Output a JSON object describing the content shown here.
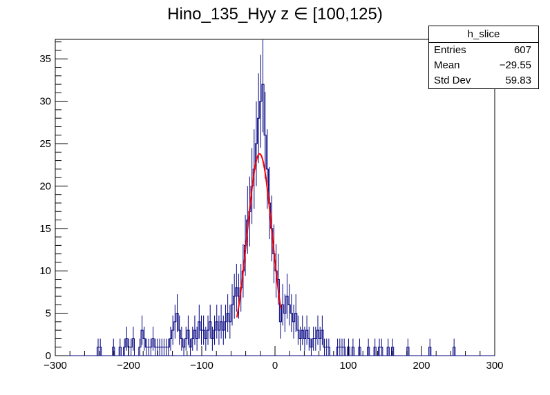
{
  "chart_data": {
    "type": "histogram",
    "title": "Hino_135_Hyy z  ∈ [100,125)",
    "xlim": [
      -300,
      300
    ],
    "ylim": [
      0,
      37.3
    ],
    "x_ticks": [
      -300,
      -200,
      -100,
      0,
      100,
      200,
      300
    ],
    "y_ticks": [
      0,
      5,
      10,
      15,
      20,
      25,
      30,
      35
    ],
    "bin_width": 3,
    "stats": {
      "name": "h_slice",
      "rows": [
        {
          "label": "Entries",
          "value": "607"
        },
        {
          "label": "Mean",
          "value": "−29.55"
        },
        {
          "label": "Std Dev",
          "value": "59.83"
        }
      ]
    },
    "colors": {
      "histogram": "#000080",
      "fit": "#ff0000"
    },
    "counts": [
      {
        "x": -243,
        "y": 1
      },
      {
        "x": -240,
        "y": 1
      },
      {
        "x": -222,
        "y": 1
      },
      {
        "x": -213,
        "y": 1
      },
      {
        "x": -207,
        "y": 1
      },
      {
        "x": -204,
        "y": 2
      },
      {
        "x": -201,
        "y": 1
      },
      {
        "x": -198,
        "y": 1
      },
      {
        "x": -195,
        "y": 2
      },
      {
        "x": -186,
        "y": 1
      },
      {
        "x": -183,
        "y": 3
      },
      {
        "x": -180,
        "y": 2
      },
      {
        "x": -177,
        "y": 1
      },
      {
        "x": -174,
        "y": 1
      },
      {
        "x": -171,
        "y": 1
      },
      {
        "x": -168,
        "y": 2
      },
      {
        "x": -165,
        "y": 1
      },
      {
        "x": -162,
        "y": 1
      },
      {
        "x": -159,
        "y": 1
      },
      {
        "x": -156,
        "y": 1
      },
      {
        "x": -153,
        "y": 1
      },
      {
        "x": -150,
        "y": 1
      },
      {
        "x": -147,
        "y": 1
      },
      {
        "x": -144,
        "y": 2
      },
      {
        "x": -141,
        "y": 3
      },
      {
        "x": -138,
        "y": 4
      },
      {
        "x": -135,
        "y": 5
      },
      {
        "x": -132,
        "y": 3
      },
      {
        "x": -129,
        "y": 2
      },
      {
        "x": -126,
        "y": 1
      },
      {
        "x": -123,
        "y": 2
      },
      {
        "x": -120,
        "y": 3
      },
      {
        "x": -117,
        "y": 1
      },
      {
        "x": -114,
        "y": 2
      },
      {
        "x": -111,
        "y": 3
      },
      {
        "x": -108,
        "y": 2
      },
      {
        "x": -105,
        "y": 4
      },
      {
        "x": -102,
        "y": 3
      },
      {
        "x": -99,
        "y": 3
      },
      {
        "x": -96,
        "y": 2
      },
      {
        "x": -93,
        "y": 3
      },
      {
        "x": -90,
        "y": 4
      },
      {
        "x": -87,
        "y": 2
      },
      {
        "x": -84,
        "y": 3
      },
      {
        "x": -81,
        "y": 4
      },
      {
        "x": -78,
        "y": 3
      },
      {
        "x": -75,
        "y": 4
      },
      {
        "x": -72,
        "y": 3
      },
      {
        "x": -69,
        "y": 4
      },
      {
        "x": -66,
        "y": 5
      },
      {
        "x": -63,
        "y": 4
      },
      {
        "x": -60,
        "y": 6
      },
      {
        "x": -57,
        "y": 7
      },
      {
        "x": -54,
        "y": 8
      },
      {
        "x": -51,
        "y": 7
      },
      {
        "x": -48,
        "y": 8
      },
      {
        "x": -45,
        "y": 10
      },
      {
        "x": -42,
        "y": 13
      },
      {
        "x": -39,
        "y": 16
      },
      {
        "x": -36,
        "y": 17
      },
      {
        "x": -33,
        "y": 20
      },
      {
        "x": -30,
        "y": 22
      },
      {
        "x": -27,
        "y": 25
      },
      {
        "x": -24,
        "y": 28
      },
      {
        "x": -21,
        "y": 30
      },
      {
        "x": -18,
        "y": 32
      },
      {
        "x": -15,
        "y": 26
      },
      {
        "x": -12,
        "y": 22
      },
      {
        "x": -9,
        "y": 18
      },
      {
        "x": -6,
        "y": 15
      },
      {
        "x": -3,
        "y": 12
      },
      {
        "x": 0,
        "y": 10
      },
      {
        "x": 3,
        "y": 9
      },
      {
        "x": 6,
        "y": 4
      },
      {
        "x": 9,
        "y": 6
      },
      {
        "x": 12,
        "y": 5
      },
      {
        "x": 15,
        "y": 7
      },
      {
        "x": 18,
        "y": 6
      },
      {
        "x": 21,
        "y": 5
      },
      {
        "x": 24,
        "y": 4
      },
      {
        "x": 27,
        "y": 5
      },
      {
        "x": 30,
        "y": 3
      },
      {
        "x": 33,
        "y": 2
      },
      {
        "x": 36,
        "y": 3
      },
      {
        "x": 39,
        "y": 2
      },
      {
        "x": 42,
        "y": 3
      },
      {
        "x": 45,
        "y": 2
      },
      {
        "x": 48,
        "y": 1
      },
      {
        "x": 51,
        "y": 2
      },
      {
        "x": 54,
        "y": 2
      },
      {
        "x": 57,
        "y": 3
      },
      {
        "x": 60,
        "y": 2
      },
      {
        "x": 63,
        "y": 3
      },
      {
        "x": 66,
        "y": 1
      },
      {
        "x": 69,
        "y": 1
      },
      {
        "x": 72,
        "y": 1
      },
      {
        "x": 84,
        "y": 1
      },
      {
        "x": 87,
        "y": 1
      },
      {
        "x": 90,
        "y": 1
      },
      {
        "x": 93,
        "y": 1
      },
      {
        "x": 99,
        "y": 1
      },
      {
        "x": 105,
        "y": 1
      },
      {
        "x": 114,
        "y": 1
      },
      {
        "x": 126,
        "y": 1
      },
      {
        "x": 135,
        "y": 1
      },
      {
        "x": 141,
        "y": 1
      },
      {
        "x": 144,
        "y": 1
      },
      {
        "x": 153,
        "y": 1
      },
      {
        "x": 159,
        "y": 1
      },
      {
        "x": 180,
        "y": 1
      },
      {
        "x": 210,
        "y": 1
      },
      {
        "x": 243,
        "y": 1
      }
    ],
    "fit": {
      "type": "gaussian",
      "constant": 23.8,
      "mean": -21,
      "sigma": 17,
      "range": [
        -52,
        8
      ]
    }
  }
}
